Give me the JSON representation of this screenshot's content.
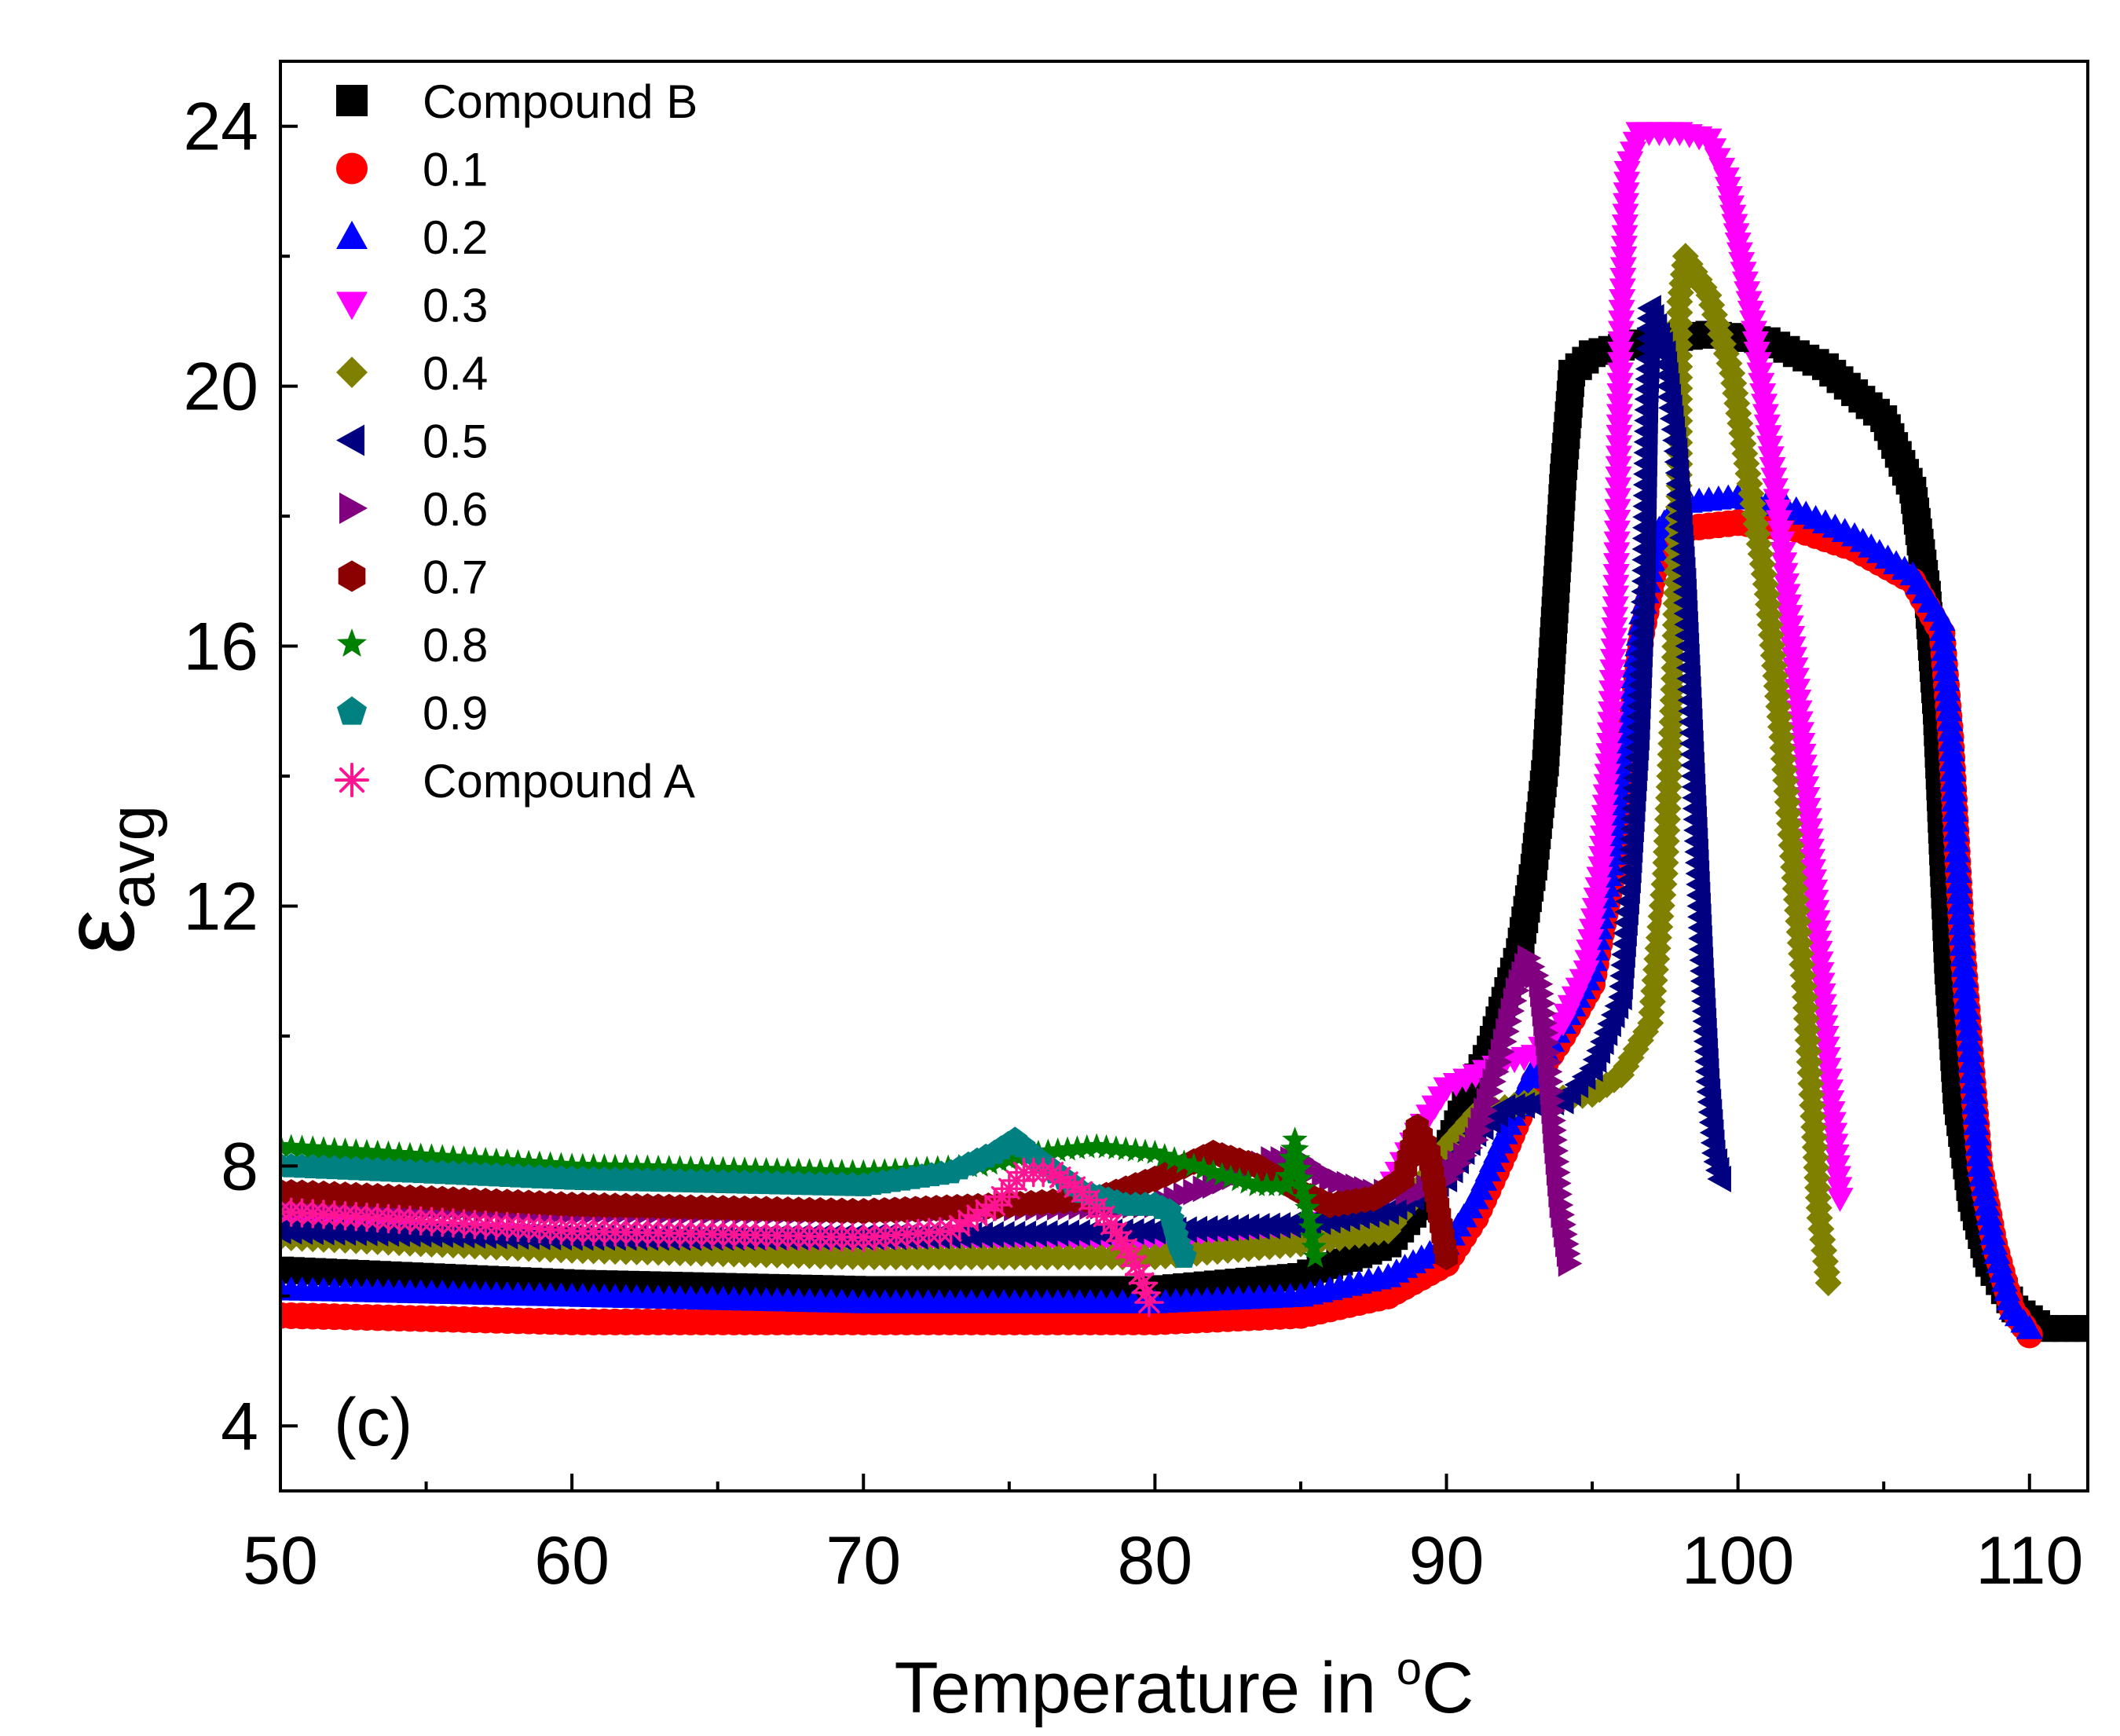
{
  "chart_data": {
    "type": "scatter",
    "panel_label": "(c)",
    "xlabel": {
      "prefix": "Temperature in ",
      "degree": "o",
      "unit": "C"
    },
    "ylabel": {
      "symbol": "ε",
      "subscript": "avg"
    },
    "xlim": [
      50,
      112
    ],
    "ylim": [
      3,
      25
    ],
    "x_ticks": [
      50,
      60,
      70,
      80,
      90,
      100,
      110
    ],
    "x_tick_labels": [
      "50",
      "60",
      "70",
      "80",
      "90",
      "100",
      "110"
    ],
    "y_ticks": [
      4,
      8,
      12,
      16,
      20,
      24
    ],
    "y_tick_labels": [
      "4",
      "8",
      "12",
      "16",
      "20",
      "24"
    ],
    "legend_position": "top-left",
    "series": [
      {
        "name": "Compound B",
        "color": "#000000",
        "marker": "square",
        "points": [
          [
            50,
            6.4
          ],
          [
            60,
            6.2
          ],
          [
            70,
            6.1
          ],
          [
            80,
            6.1
          ],
          [
            85,
            6.3
          ],
          [
            88,
            6.8
          ],
          [
            89.5,
            7.6
          ],
          [
            90.5,
            8.8
          ],
          [
            91.5,
            9.8
          ],
          [
            92.5,
            11.3
          ],
          [
            93,
            12.6
          ],
          [
            93.4,
            14.2
          ],
          [
            93.7,
            16.4
          ],
          [
            94,
            18.6
          ],
          [
            94.3,
            20.2
          ],
          [
            95,
            20.5
          ],
          [
            97,
            20.7
          ],
          [
            99,
            20.8
          ],
          [
            101,
            20.7
          ],
          [
            103,
            20.3
          ],
          [
            105,
            19.5
          ],
          [
            106,
            18.4
          ],
          [
            106.5,
            16.8
          ],
          [
            106.8,
            15
          ],
          [
            107,
            13
          ],
          [
            107.2,
            11
          ],
          [
            107.5,
            9
          ],
          [
            108,
            7.5
          ],
          [
            108.6,
            6.5
          ],
          [
            109.5,
            5.8
          ],
          [
            110.5,
            5.5
          ],
          [
            112,
            5.5
          ]
        ]
      },
      {
        "name": "0.1",
        "color": "#ff0000",
        "marker": "circle",
        "points": [
          [
            50,
            5.7
          ],
          [
            60,
            5.6
          ],
          [
            70,
            5.6
          ],
          [
            80,
            5.6
          ],
          [
            85,
            5.7
          ],
          [
            88,
            6
          ],
          [
            90,
            6.5
          ],
          [
            91,
            7.2
          ],
          [
            92,
            8.2
          ],
          [
            93,
            9.3
          ],
          [
            94,
            10
          ],
          [
            95,
            10.8
          ],
          [
            95.7,
            12.5
          ],
          [
            96.2,
            14.4
          ],
          [
            96.7,
            16.2
          ],
          [
            97.3,
            17.5
          ],
          [
            98,
            17.8
          ],
          [
            100,
            17.9
          ],
          [
            102,
            17.8
          ],
          [
            104,
            17.5
          ],
          [
            106,
            17
          ],
          [
            107,
            16.2
          ],
          [
            107.3,
            14.6
          ],
          [
            107.5,
            13
          ],
          [
            107.7,
            11.4
          ],
          [
            108,
            9.6
          ],
          [
            108.3,
            8
          ],
          [
            108.8,
            6.8
          ],
          [
            109.4,
            5.8
          ],
          [
            110,
            5.4
          ]
        ]
      },
      {
        "name": "0.2",
        "color": "#0000ff",
        "marker": "triangle-up",
        "points": [
          [
            50,
            6.1
          ],
          [
            60,
            6
          ],
          [
            70,
            5.9
          ],
          [
            80,
            5.9
          ],
          [
            85,
            6
          ],
          [
            88,
            6.3
          ],
          [
            90,
            6.8
          ],
          [
            91,
            7.5
          ],
          [
            92,
            8.5
          ],
          [
            93,
            9.5
          ],
          [
            94,
            10.2
          ],
          [
            95,
            11
          ],
          [
            95.7,
            12.8
          ],
          [
            96.2,
            14.7
          ],
          [
            96.7,
            16.5
          ],
          [
            97.3,
            17.8
          ],
          [
            98,
            18.2
          ],
          [
            100,
            18.3
          ],
          [
            102,
            18.1
          ],
          [
            104,
            17.7
          ],
          [
            106,
            17.1
          ],
          [
            107,
            16.4
          ],
          [
            107.3,
            14.7
          ],
          [
            107.5,
            13
          ],
          [
            107.7,
            11.4
          ],
          [
            108,
            9.6
          ],
          [
            108.3,
            8
          ],
          [
            108.8,
            6.8
          ],
          [
            109.4,
            5.8
          ],
          [
            110,
            5.5
          ]
        ]
      },
      {
        "name": "0.3",
        "color": "#ff00ff",
        "marker": "triangle-down",
        "points": [
          [
            50,
            7.1
          ],
          [
            60,
            6.9
          ],
          [
            70,
            6.8
          ],
          [
            80,
            6.8
          ],
          [
            85,
            7
          ],
          [
            88,
            7.6
          ],
          [
            89,
            8.5
          ],
          [
            90,
            9.2
          ],
          [
            92,
            9.6
          ],
          [
            93,
            9.7
          ],
          [
            94,
            10.2
          ],
          [
            94.8,
            11
          ],
          [
            95.3,
            12.6
          ],
          [
            95.6,
            14.5
          ],
          [
            95.8,
            16.6
          ],
          [
            95.9,
            18.6
          ],
          [
            96,
            21
          ],
          [
            96.2,
            23.3
          ],
          [
            96.6,
            23.9
          ],
          [
            98,
            23.9
          ],
          [
            99,
            23.8
          ],
          [
            99.6,
            23.2
          ],
          [
            100,
            22.2
          ],
          [
            100.5,
            21
          ],
          [
            101,
            19.4
          ],
          [
            101.5,
            17.6
          ],
          [
            102,
            15.5
          ],
          [
            102.4,
            13.5
          ],
          [
            102.8,
            11.3
          ],
          [
            103.1,
            9.5
          ],
          [
            103.5,
            7.5
          ]
        ]
      },
      {
        "name": "0.4",
        "color": "#808000",
        "marker": "diamond",
        "points": [
          [
            50,
            6.9
          ],
          [
            60,
            6.7
          ],
          [
            70,
            6.6
          ],
          [
            80,
            6.6
          ],
          [
            85,
            6.8
          ],
          [
            88,
            7
          ],
          [
            89,
            7.6
          ],
          [
            90,
            8.3
          ],
          [
            91,
            8.8
          ],
          [
            93,
            9
          ],
          [
            95,
            9.1
          ],
          [
            96,
            9.4
          ],
          [
            97,
            10.2
          ],
          [
            97.5,
            12.5
          ],
          [
            97.8,
            15.5
          ],
          [
            98,
            18.8
          ],
          [
            98,
            21.3
          ],
          [
            98.2,
            22
          ],
          [
            99,
            21.4
          ],
          [
            99.8,
            20.2
          ],
          [
            100.4,
            18.5
          ],
          [
            101,
            16.8
          ],
          [
            101.5,
            14.6
          ],
          [
            101.9,
            12.6
          ],
          [
            102.3,
            10.6
          ],
          [
            102.6,
            8.6
          ],
          [
            102.8,
            7.2
          ],
          [
            103.1,
            6.2
          ]
        ]
      },
      {
        "name": "0.5",
        "color": "#000080",
        "marker": "triangle-left",
        "points": [
          [
            50,
            7
          ],
          [
            60,
            6.9
          ],
          [
            70,
            6.9
          ],
          [
            80,
            7
          ],
          [
            85,
            7.1
          ],
          [
            88,
            7.3
          ],
          [
            90,
            7.8
          ],
          [
            91,
            8.5
          ],
          [
            92,
            8.9
          ],
          [
            94,
            9
          ],
          [
            95,
            9.5
          ],
          [
            96,
            10.6
          ],
          [
            96.3,
            12.4
          ],
          [
            96.6,
            14.6
          ],
          [
            96.8,
            17
          ],
          [
            96.9,
            19.8
          ],
          [
            97,
            21.2
          ],
          [
            97.5,
            20.5
          ],
          [
            97.9,
            19
          ],
          [
            98.2,
            17
          ],
          [
            98.4,
            15
          ],
          [
            98.6,
            13
          ],
          [
            98.8,
            11
          ],
          [
            99,
            9.3
          ],
          [
            99.2,
            8.2
          ],
          [
            99.4,
            7.8
          ]
        ]
      },
      {
        "name": "0.6",
        "color": "#800080",
        "marker": "triangle-right",
        "points": [
          [
            50,
            7.4
          ],
          [
            60,
            7.3
          ],
          [
            70,
            7.3
          ],
          [
            80,
            7.4
          ],
          [
            82,
            7.7
          ],
          [
            84,
            8.1
          ],
          [
            85,
            8.1
          ],
          [
            86,
            7.8
          ],
          [
            87.5,
            7.6
          ],
          [
            89,
            7.6
          ],
          [
            90,
            7.8
          ],
          [
            91,
            8.4
          ],
          [
            91.8,
            9.6
          ],
          [
            92.4,
            10.7
          ],
          [
            92.8,
            11.2
          ],
          [
            93.2,
            10.8
          ],
          [
            93.5,
            9.6
          ],
          [
            93.7,
            8.4
          ],
          [
            93.9,
            7.4
          ],
          [
            94.2,
            6.5
          ]
        ]
      },
      {
        "name": "0.7",
        "color": "#8b0000",
        "marker": "hexagon",
        "points": [
          [
            50,
            7.6
          ],
          [
            60,
            7.4
          ],
          [
            70,
            7.3
          ],
          [
            75,
            7.4
          ],
          [
            78,
            7.5
          ],
          [
            80,
            7.8
          ],
          [
            82,
            8.2
          ],
          [
            83.5,
            8
          ],
          [
            85,
            7.6
          ],
          [
            86,
            7.4
          ],
          [
            87.5,
            7.5
          ],
          [
            88.5,
            7.8
          ],
          [
            89,
            8.6
          ],
          [
            89.4,
            8.2
          ],
          [
            89.7,
            7.4
          ],
          [
            90,
            6.6
          ]
        ]
      },
      {
        "name": "0.8",
        "color": "#008000",
        "marker": "star",
        "points": [
          [
            50,
            8.3
          ],
          [
            60,
            8
          ],
          [
            70,
            7.9
          ],
          [
            74,
            8
          ],
          [
            76,
            8.2
          ],
          [
            78,
            8.3
          ],
          [
            80,
            8.2
          ],
          [
            82,
            7.9
          ],
          [
            83.5,
            7.7
          ],
          [
            84.5,
            7.7
          ],
          [
            84.8,
            8.4
          ],
          [
            85,
            7.8
          ],
          [
            85.3,
            7.2
          ],
          [
            85.5,
            6.6
          ]
        ]
      },
      {
        "name": "0.9",
        "color": "#008080",
        "marker": "pentagon",
        "points": [
          [
            50,
            8
          ],
          [
            60,
            7.8
          ],
          [
            70,
            7.7
          ],
          [
            73,
            7.9
          ],
          [
            74.5,
            8.2
          ],
          [
            75.2,
            8.4
          ],
          [
            76,
            8.1
          ],
          [
            77.5,
            7.6
          ],
          [
            79,
            7.4
          ],
          [
            80,
            7.4
          ],
          [
            80.5,
            7.3
          ],
          [
            80.8,
            6.8
          ],
          [
            81,
            6.6
          ]
        ]
      },
      {
        "name": "Compound A",
        "color": "#ff1493",
        "marker": "asterisk",
        "points": [
          [
            50,
            7.3
          ],
          [
            60,
            7
          ],
          [
            70,
            6.9
          ],
          [
            73,
            7
          ],
          [
            74.5,
            7.4
          ],
          [
            75.5,
            7.9
          ],
          [
            76.5,
            7.9
          ],
          [
            77.5,
            7.6
          ],
          [
            78.5,
            7.1
          ],
          [
            79.2,
            6.6
          ],
          [
            79.6,
            6.2
          ],
          [
            79.8,
            5.9
          ]
        ]
      }
    ]
  }
}
